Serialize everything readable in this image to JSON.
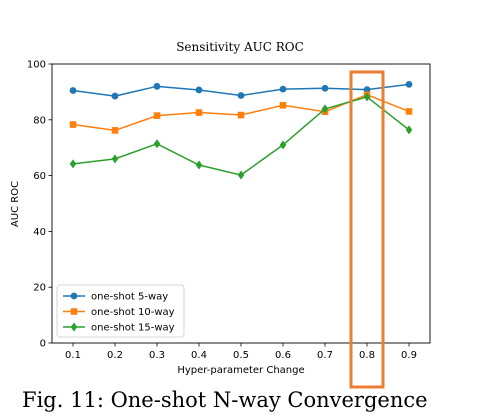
{
  "chart_data": {
    "type": "line",
    "title": "Sensitivity AUC ROC",
    "xlabel": "Hyper-parameter Change",
    "ylabel": "AUC ROC",
    "x": [
      0.1,
      0.2,
      0.3,
      0.4,
      0.5,
      0.6,
      0.7,
      0.8,
      0.9
    ],
    "x_tick_labels": [
      "0.1",
      "0.2",
      "0.3",
      "0.4",
      "0.5",
      "0.6",
      "0.7",
      "0.8",
      "0.9"
    ],
    "ylim": [
      0,
      100
    ],
    "y_ticks": [
      0,
      20,
      40,
      60,
      80,
      100
    ],
    "y_tick_labels": [
      "0",
      "20",
      "40",
      "60",
      "80",
      "100"
    ],
    "grid": false,
    "legend_position": "lower-left",
    "series": [
      {
        "name": "one-shot 5-way",
        "color": "#1f77b4",
        "marker": "circle",
        "values": [
          90.5,
          88.5,
          92.0,
          90.7,
          88.7,
          91.0,
          91.3,
          90.8,
          92.7
        ]
      },
      {
        "name": "one-shot 10-way",
        "color": "#ff7f0e",
        "marker": "square",
        "values": [
          78.3,
          76.2,
          81.5,
          82.6,
          81.7,
          85.2,
          82.9,
          89.0,
          83.0
        ]
      },
      {
        "name": "one-shot 15-way",
        "color": "#2ca02c",
        "marker": "diamond",
        "values": [
          64.2,
          66.0,
          71.4,
          63.8,
          60.2,
          71.0,
          83.9,
          88.2,
          76.4
        ]
      }
    ],
    "highlight": {
      "x": 0.8,
      "color": "#ed7d31"
    }
  },
  "caption": {
    "label": "Fig. 11",
    "text": ": One-shot N-way Convergence"
  }
}
